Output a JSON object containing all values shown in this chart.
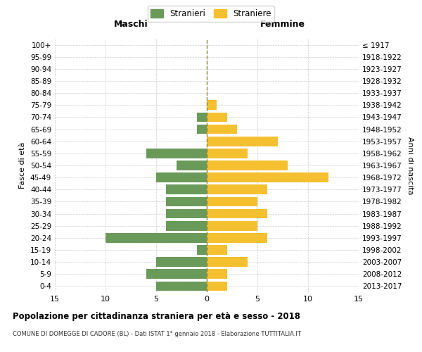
{
  "age_groups": [
    "100+",
    "95-99",
    "90-94",
    "85-89",
    "80-84",
    "75-79",
    "70-74",
    "65-69",
    "60-64",
    "55-59",
    "50-54",
    "45-49",
    "40-44",
    "35-39",
    "30-34",
    "25-29",
    "20-24",
    "15-19",
    "10-14",
    "5-9",
    "0-4"
  ],
  "birth_years": [
    "≤ 1917",
    "1918-1922",
    "1923-1927",
    "1928-1932",
    "1933-1937",
    "1938-1942",
    "1943-1947",
    "1948-1952",
    "1953-1957",
    "1958-1962",
    "1963-1967",
    "1968-1972",
    "1973-1977",
    "1978-1982",
    "1983-1987",
    "1988-1992",
    "1993-1997",
    "1998-2002",
    "2003-2007",
    "2008-2012",
    "2013-2017"
  ],
  "males": [
    0,
    0,
    0,
    0,
    0,
    0,
    1,
    1,
    0,
    6,
    3,
    5,
    4,
    4,
    4,
    4,
    10,
    1,
    5,
    6,
    5
  ],
  "females": [
    0,
    0,
    0,
    0,
    0,
    1,
    2,
    3,
    7,
    4,
    8,
    12,
    6,
    5,
    6,
    5,
    6,
    2,
    4,
    2,
    2
  ],
  "male_color": "#6a9a5a",
  "female_color": "#f5c030",
  "background_color": "#ffffff",
  "grid_color": "#cccccc",
  "title": "Popolazione per cittadinanza straniera per età e sesso - 2018",
  "subtitle": "COMUNE DI DOMEGGE DI CADORE (BL) - Dati ISTAT 1° gennaio 2018 - Elaborazione TUTTITALIA.IT",
  "ylabel_left": "Fasce di età",
  "ylabel_right": "Anni di nascita",
  "xlabel_left": "Maschi",
  "xlabel_right": "Femmine",
  "legend_male": "Stranieri",
  "legend_female": "Straniere",
  "xlim": 15,
  "bar_height": 0.8
}
